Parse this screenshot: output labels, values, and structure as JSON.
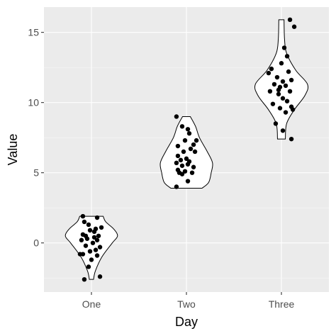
{
  "chart_data": {
    "type": "violin",
    "xlabel": "Day",
    "ylabel": "Value",
    "categories": [
      "One",
      "Two",
      "Three"
    ],
    "ylim": [
      -3.5,
      16.8
    ],
    "yticks": [
      0,
      5,
      10,
      15
    ],
    "ytick_labels": [
      "0",
      "5",
      "10",
      "15"
    ],
    "grid": true,
    "colors": {
      "panel": "#EBEBEB",
      "grid_major": "#FFFFFF",
      "grid_minor": "#F7F7F7",
      "violin_fill": "#FFFFFF",
      "violin_stroke": "#000000",
      "point": "#000000"
    },
    "violins": [
      {
        "category": "One",
        "min": -2.6,
        "max": 1.9,
        "profile": [
          [
            -2.6,
            0.08
          ],
          [
            -2.0,
            0.15
          ],
          [
            -1.0,
            0.4
          ],
          [
            0.0,
            0.8
          ],
          [
            0.5,
            1.0
          ],
          [
            1.0,
            0.85
          ],
          [
            1.5,
            0.55
          ],
          [
            1.9,
            0.45
          ]
        ]
      },
      {
        "category": "Two",
        "min": 3.9,
        "max": 9.0,
        "profile": [
          [
            3.9,
            0.6
          ],
          [
            4.3,
            0.85
          ],
          [
            5.0,
            0.95
          ],
          [
            5.7,
            1.0
          ],
          [
            6.5,
            0.8
          ],
          [
            7.5,
            0.5
          ],
          [
            8.3,
            0.35
          ],
          [
            9.0,
            0.15
          ]
        ]
      },
      {
        "category": "Three",
        "min": 7.4,
        "max": 15.9,
        "profile": [
          [
            7.4,
            0.15
          ],
          [
            8.5,
            0.2
          ],
          [
            9.5,
            0.5
          ],
          [
            10.5,
            0.9
          ],
          [
            11.3,
            1.0
          ],
          [
            12.3,
            0.55
          ],
          [
            13.5,
            0.2
          ],
          [
            14.5,
            0.12
          ],
          [
            15.9,
            0.1
          ]
        ]
      }
    ],
    "points": [
      {
        "category": "One",
        "jitter": [
          [
            -0.3,
            1.9
          ],
          [
            0.2,
            1.8
          ],
          [
            -0.25,
            1.5
          ],
          [
            -0.1,
            1.3
          ],
          [
            0.15,
            1.0
          ],
          [
            0.35,
            1.1
          ],
          [
            -0.05,
            0.9
          ],
          [
            0.1,
            0.8
          ],
          [
            -0.3,
            0.6
          ],
          [
            0.25,
            0.5
          ],
          [
            -0.15,
            0.3
          ],
          [
            0.2,
            0.2
          ],
          [
            -0.35,
            0.2
          ],
          [
            0.05,
            0.0
          ],
          [
            -0.2,
            -0.2
          ],
          [
            0.3,
            -0.3
          ],
          [
            0.15,
            -0.5
          ],
          [
            -0.05,
            -0.6
          ],
          [
            -0.3,
            -0.8
          ],
          [
            -0.4,
            -0.8
          ],
          [
            0.2,
            -0.9
          ],
          [
            0.0,
            -1.2
          ],
          [
            -0.1,
            -1.7
          ],
          [
            0.3,
            -2.4
          ],
          [
            -0.25,
            -2.6
          ],
          [
            0.1,
            0.4
          ],
          [
            -0.2,
            0.5
          ]
        ]
      },
      {
        "category": "Two",
        "jitter": [
          [
            -0.35,
            9.0
          ],
          [
            -0.15,
            8.3
          ],
          [
            0.05,
            8.1
          ],
          [
            0.1,
            7.8
          ],
          [
            0.35,
            7.3
          ],
          [
            -0.05,
            7.3
          ],
          [
            0.25,
            7.0
          ],
          [
            -0.3,
            6.9
          ],
          [
            0.15,
            6.7
          ],
          [
            -0.1,
            6.5
          ],
          [
            0.3,
            6.5
          ],
          [
            -0.3,
            6.2
          ],
          [
            0.0,
            6.0
          ],
          [
            -0.2,
            5.9
          ],
          [
            0.1,
            5.8
          ],
          [
            -0.35,
            5.7
          ],
          [
            0.05,
            5.6
          ],
          [
            -0.15,
            5.5
          ],
          [
            0.25,
            5.4
          ],
          [
            -0.3,
            5.2
          ],
          [
            -0.05,
            5.1
          ],
          [
            0.2,
            5.0
          ],
          [
            -0.25,
            5.0
          ],
          [
            -0.15,
            4.9
          ],
          [
            0.05,
            4.4
          ],
          [
            -0.35,
            4.0
          ]
        ]
      },
      {
        "category": "Three",
        "jitter": [
          [
            0.3,
            15.9
          ],
          [
            0.45,
            15.4
          ],
          [
            0.1,
            13.9
          ],
          [
            0.2,
            13.3
          ],
          [
            0.0,
            12.8
          ],
          [
            -0.35,
            12.4
          ],
          [
            -0.45,
            12.1
          ],
          [
            0.25,
            12.2
          ],
          [
            -0.15,
            11.8
          ],
          [
            0.05,
            11.5
          ],
          [
            0.35,
            11.6
          ],
          [
            -0.25,
            11.3
          ],
          [
            -0.05,
            11.1
          ],
          [
            0.15,
            11.2
          ],
          [
            0.3,
            10.8
          ],
          [
            -0.4,
            10.8
          ],
          [
            -0.1,
            10.6
          ],
          [
            0.05,
            10.3
          ],
          [
            0.2,
            10.1
          ],
          [
            -0.3,
            9.9
          ],
          [
            0.35,
            9.7
          ],
          [
            -0.05,
            9.6
          ],
          [
            0.15,
            9.3
          ],
          [
            -0.2,
            8.5
          ],
          [
            0.05,
            8.0
          ],
          [
            0.35,
            7.4
          ],
          [
            0.4,
            9.5
          ],
          [
            -0.1,
            10.9
          ]
        ]
      }
    ]
  }
}
